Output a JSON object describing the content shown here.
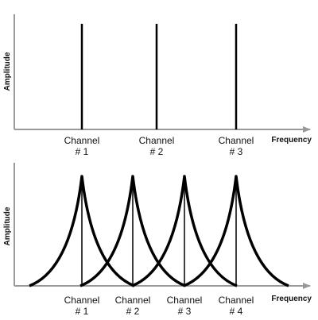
{
  "panels": [
    {
      "y_label": "Amplitude",
      "x_label": "Frequency",
      "channels": [
        {
          "name": "Channel",
          "number": "# 1"
        },
        {
          "name": "Channel",
          "number": "# 2"
        },
        {
          "name": "Channel",
          "number": "# 3"
        }
      ]
    },
    {
      "y_label": "Amplitude",
      "x_label": "Frequency",
      "channels": [
        {
          "name": "Channel",
          "number": "# 1"
        },
        {
          "name": "Channel",
          "number": "# 2"
        },
        {
          "name": "Channel",
          "number": "# 3"
        },
        {
          "name": "Channel",
          "number": "# 4"
        }
      ]
    }
  ]
}
